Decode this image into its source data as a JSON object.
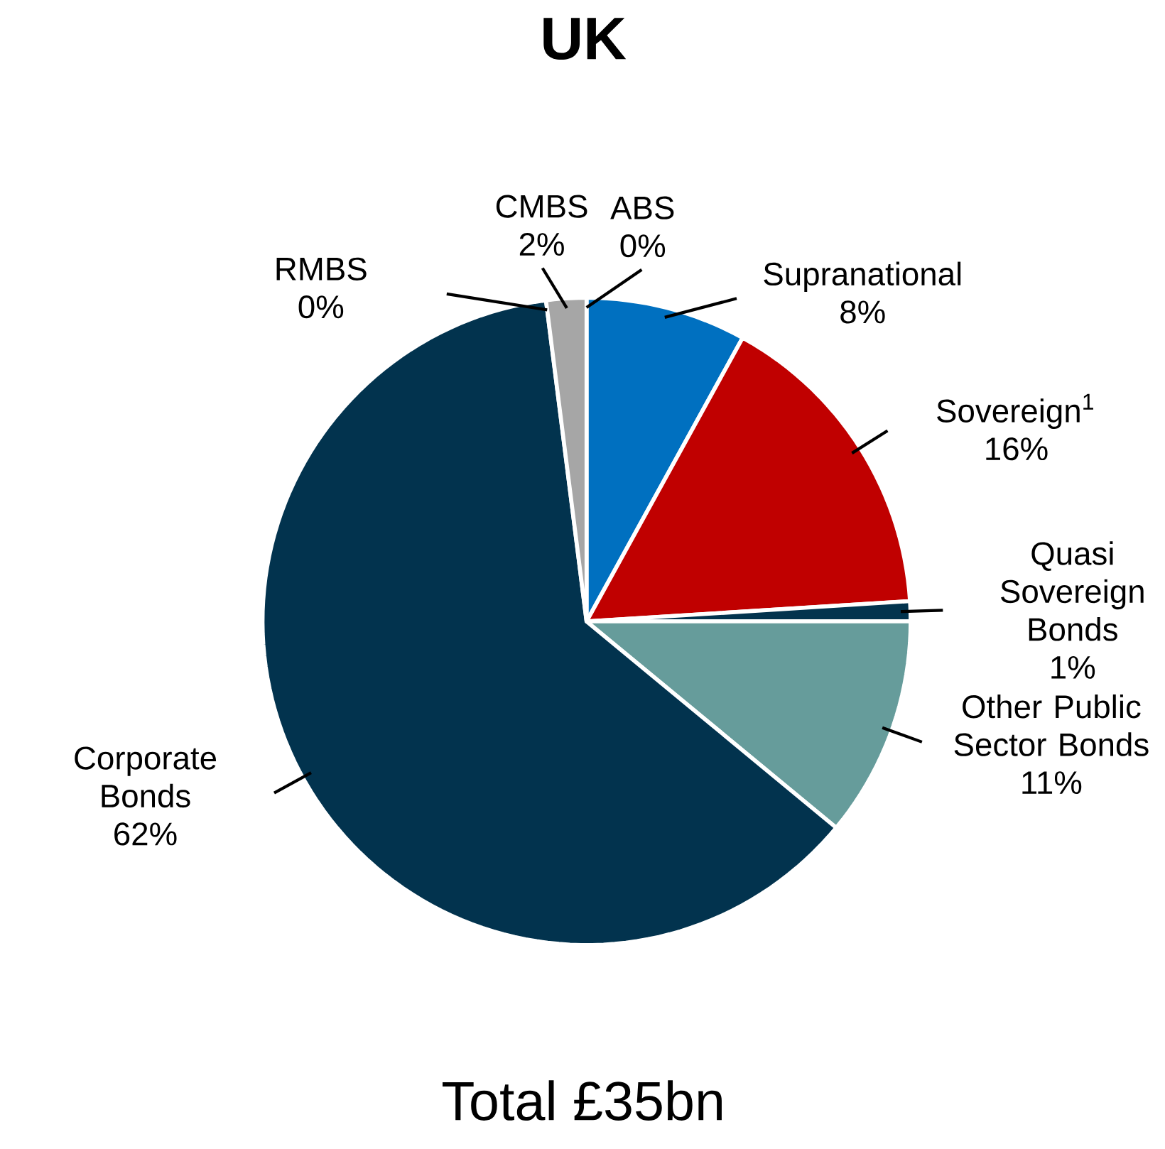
{
  "chart_data": {
    "type": "pie",
    "title": "UK",
    "categories": [
      "Supranational",
      "Sovereign$^{1}$",
      "Quasi Sovereign Bonds",
      "Other Public Sector Bonds",
      "Corporate Bonds",
      "RMBS",
      "CMBS",
      "ABS"
    ],
    "values": [
      8,
      16,
      1,
      11,
      62,
      0,
      2,
      0
    ],
    "value_labels": [
      "8%",
      "16%",
      "1%",
      "11%",
      "62%",
      "0%",
      "2%",
      "0%"
    ],
    "colors": [
      "#0070c0",
      "#c00000",
      "#02334e",
      "#669c9b",
      "#02334e",
      "#7f7f7f",
      "#a6a6a6",
      "#d9d9d9"
    ],
    "annotations": [
      "Total £35bn"
    ]
  }
}
